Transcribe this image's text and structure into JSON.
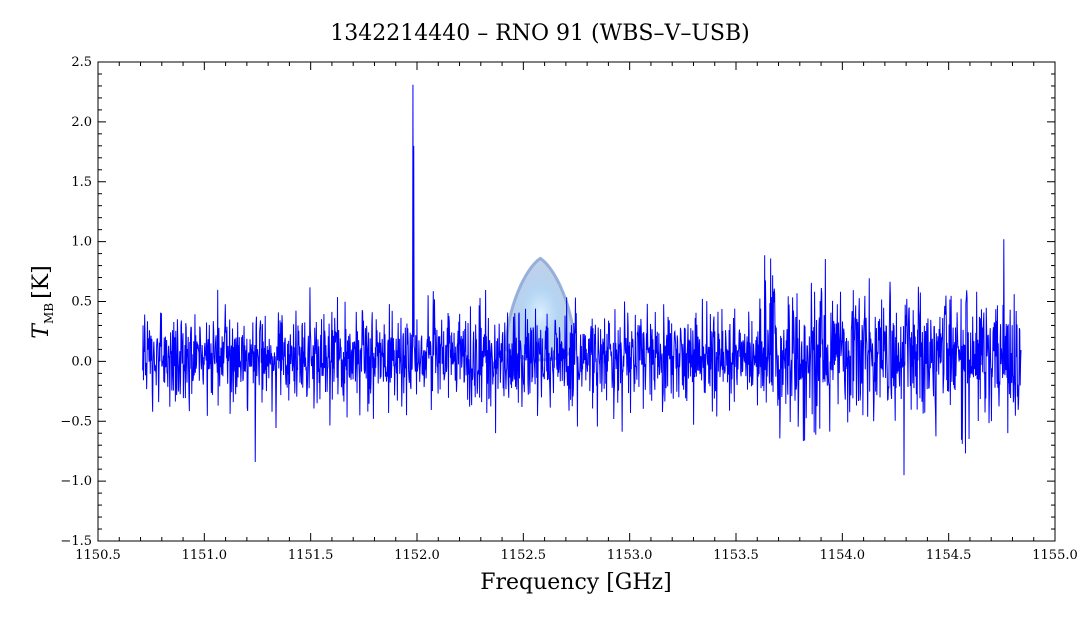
{
  "chart_data": {
    "type": "line",
    "title": "1342214440 – RNO 91 (WBS–V–USB)",
    "xlabel": "Frequency [GHz]",
    "ylabel_main": "T",
    "ylabel_sub": "MB",
    "ylabel_unit": "[K]",
    "xlim": [
      1150.5,
      1155.0
    ],
    "ylim": [
      -1.5,
      2.5
    ],
    "xticks": [
      "1150.5",
      "1151.0",
      "1151.5",
      "1152.0",
      "1152.5",
      "1153.0",
      "1153.5",
      "1154.0",
      "1154.5",
      "1155.0"
    ],
    "yticks": [
      "−1.5",
      "−1.0",
      "−0.5",
      "0.0",
      "0.5",
      "1.0",
      "1.5",
      "2.0",
      "2.5"
    ],
    "grid": false,
    "series": [
      {
        "color": "#0000ff",
        "x_start": 1150.71,
        "x_end": 1154.84,
        "noise_rms": 0.2,
        "noise_rms_high_freq": 0.28,
        "features": [
          {
            "x": 1151.24,
            "y": -0.84
          },
          {
            "x": 1151.95,
            "y": -0.45
          },
          {
            "x": 1151.98,
            "y": 2.31
          },
          {
            "x": 1151.985,
            "y": 1.8
          },
          {
            "x": 1154.29,
            "y": -0.95
          },
          {
            "x": 1154.76,
            "y": 1.02
          }
        ]
      }
    ],
    "annotation_shape": {
      "center_x": 1152.58,
      "peak_y": 0.86,
      "base_y": 0.1,
      "half_width": 0.16,
      "color": "#8fa8d8"
    }
  }
}
